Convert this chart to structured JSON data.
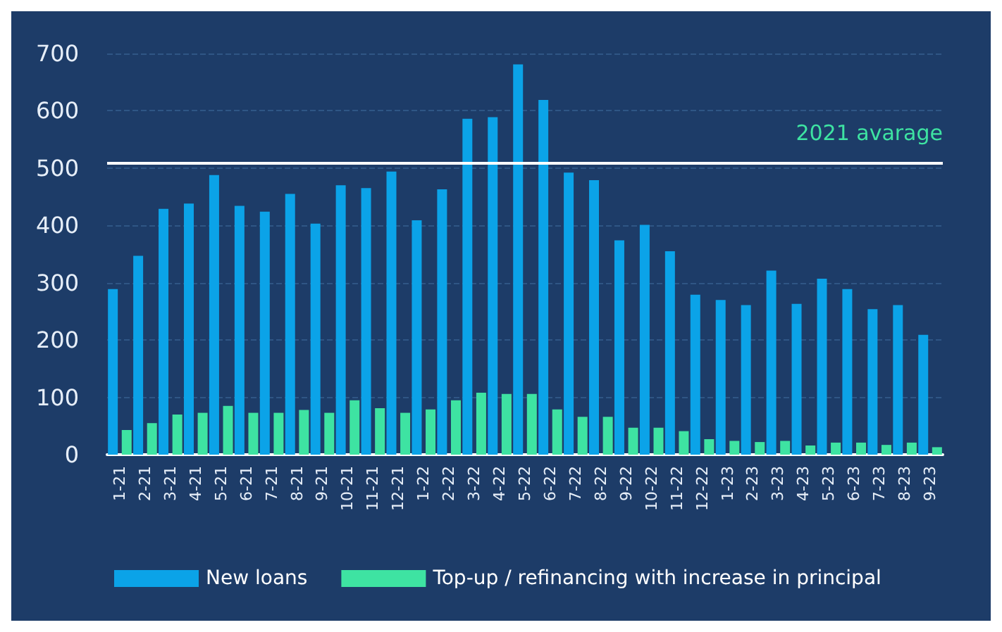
{
  "chart_data": {
    "type": "bar",
    "categories": [
      "1-21",
      "2-21",
      "3-21",
      "4-21",
      "5-21",
      "6-21",
      "7-21",
      "8-21",
      "9-21",
      "10-21",
      "11-21",
      "12-21",
      "1-22",
      "2-22",
      "3-22",
      "4-22",
      "5-22",
      "6-22",
      "7-22",
      "8-22",
      "9-22",
      "10-22",
      "11-22",
      "12-22",
      "1-23",
      "2-23",
      "3-23",
      "4-23",
      "5-23",
      "6-23",
      "7-23",
      "8-23",
      "9-23"
    ],
    "series": [
      {
        "name": "New loans",
        "color": "#0ba3e8",
        "values": [
          289,
          347,
          429,
          438,
          488,
          434,
          424,
          455,
          403,
          470,
          465,
          494,
          409,
          463,
          586,
          589,
          681,
          619,
          492,
          479,
          374,
          401,
          355,
          279,
          270,
          261,
          321,
          263,
          307,
          289,
          254,
          261,
          209
        ]
      },
      {
        "name": "Top-up / refinancing with increase in principal",
        "color": "#3ee3a2",
        "values": [
          43,
          55,
          70,
          73,
          85,
          73,
          73,
          78,
          73,
          95,
          81,
          73,
          79,
          95,
          108,
          106,
          106,
          79,
          66,
          66,
          47,
          47,
          41,
          27,
          24,
          22,
          24,
          16,
          21,
          21,
          17,
          21,
          13
        ]
      }
    ],
    "ylim": [
      0,
      700
    ],
    "yticks": [
      0,
      100,
      200,
      300,
      400,
      500,
      600,
      700
    ],
    "grid": "y",
    "ref_lines": [
      {
        "axis": "y",
        "value": 509,
        "label": "2021 avarage",
        "color": "#ffffff"
      }
    ],
    "legend": "bottom left"
  }
}
